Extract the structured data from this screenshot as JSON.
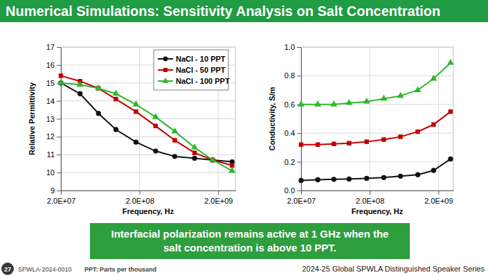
{
  "title": "Numerical Simulations: Sensitivity Analysis on Salt Concentration",
  "chart_data": [
    {
      "type": "line",
      "y_label": "Relative Permittivity",
      "x_label": "Frequency, Hz",
      "log": "x",
      "grid": true,
      "legend": "top-right",
      "x": [
        20000000.0,
        35000000.0,
        60000000.0,
        100000000.0,
        180000000.0,
        320000000.0,
        560000000.0,
        1000000000.0,
        1700000000.0,
        3000000000.0
      ],
      "xlim": [
        20000000.0,
        3300000000.0
      ],
      "xticks": [
        {
          "value": 20000000.0,
          "label": "2.0E+07"
        },
        {
          "value": 200000000.0,
          "label": "2.0E+08"
        },
        {
          "value": 2000000000.0,
          "label": "2.0E+09"
        }
      ],
      "ylim": [
        9,
        17
      ],
      "yticks": [
        9,
        10,
        11,
        12,
        13,
        14,
        15,
        16,
        17
      ],
      "series": [
        {
          "name": "NaCl - 10 PPT",
          "color": "#111111",
          "marker": "circle",
          "line_style": "solid",
          "values": [
            15.0,
            14.4,
            13.3,
            12.4,
            11.7,
            11.2,
            10.9,
            10.8,
            10.7,
            10.6
          ]
        },
        {
          "name": "NaCl - 50 PPT",
          "color": "#c00000",
          "marker": "square",
          "line_style": "solid",
          "values": [
            15.4,
            15.1,
            14.7,
            14.1,
            13.4,
            12.6,
            11.8,
            11.1,
            10.7,
            10.4
          ]
        },
        {
          "name": "NaCl - 100 PPT",
          "color": "#2db82d",
          "marker": "triangle",
          "line_style": "solid",
          "values": [
            15.0,
            14.9,
            14.7,
            14.4,
            13.8,
            13.1,
            12.3,
            11.4,
            10.7,
            10.1
          ]
        }
      ]
    },
    {
      "type": "line",
      "y_label": "Conductivity, S/m",
      "x_label": "Frequency, Hz",
      "log": "x",
      "grid": true,
      "x": [
        20000000.0,
        35000000.0,
        60000000.0,
        100000000.0,
        180000000.0,
        320000000.0,
        560000000.0,
        1000000000.0,
        1700000000.0,
        3000000000.0
      ],
      "xlim": [
        20000000.0,
        3300000000.0
      ],
      "xticks": [
        {
          "value": 20000000.0,
          "label": "2.0E+07"
        },
        {
          "value": 200000000.0,
          "label": "2.0E+08"
        },
        {
          "value": 2000000000.0,
          "label": "2.0E+09"
        }
      ],
      "ylim": [
        0,
        1
      ],
      "yticks": [
        {
          "value": 0,
          "label": "0.0"
        },
        0.2,
        0.4,
        0.6,
        0.8,
        {
          "value": 1,
          "label": "1.0"
        }
      ],
      "series": [
        {
          "name": "NaCl - 10 PPT",
          "color": "#111111",
          "marker": "circle",
          "line_style": "solid",
          "values": [
            0.07,
            0.075,
            0.078,
            0.08,
            0.085,
            0.09,
            0.1,
            0.11,
            0.14,
            0.22
          ]
        },
        {
          "name": "NaCl - 50 PPT",
          "color": "#c00000",
          "marker": "square",
          "line_style": "solid",
          "values": [
            0.32,
            0.32,
            0.325,
            0.33,
            0.34,
            0.355,
            0.375,
            0.41,
            0.46,
            0.55
          ]
        },
        {
          "name": "NaCl - 100 PPT",
          "color": "#2db82d",
          "marker": "triangle",
          "line_style": "solid",
          "values": [
            0.6,
            0.6,
            0.6,
            0.61,
            0.62,
            0.64,
            0.66,
            0.7,
            0.78,
            0.89
          ]
        }
      ]
    }
  ],
  "callout": [
    "Interfacial polarization remains active at 1 GHz when the",
    "salt concentration is above 10 PPT."
  ],
  "footer": {
    "slide_number": "27",
    "paper": "SPWLA-2024-0010",
    "note": "PPT: Parts per thousand",
    "series": "2024-25 Global SPWLA Distinguished Speaker Series"
  }
}
